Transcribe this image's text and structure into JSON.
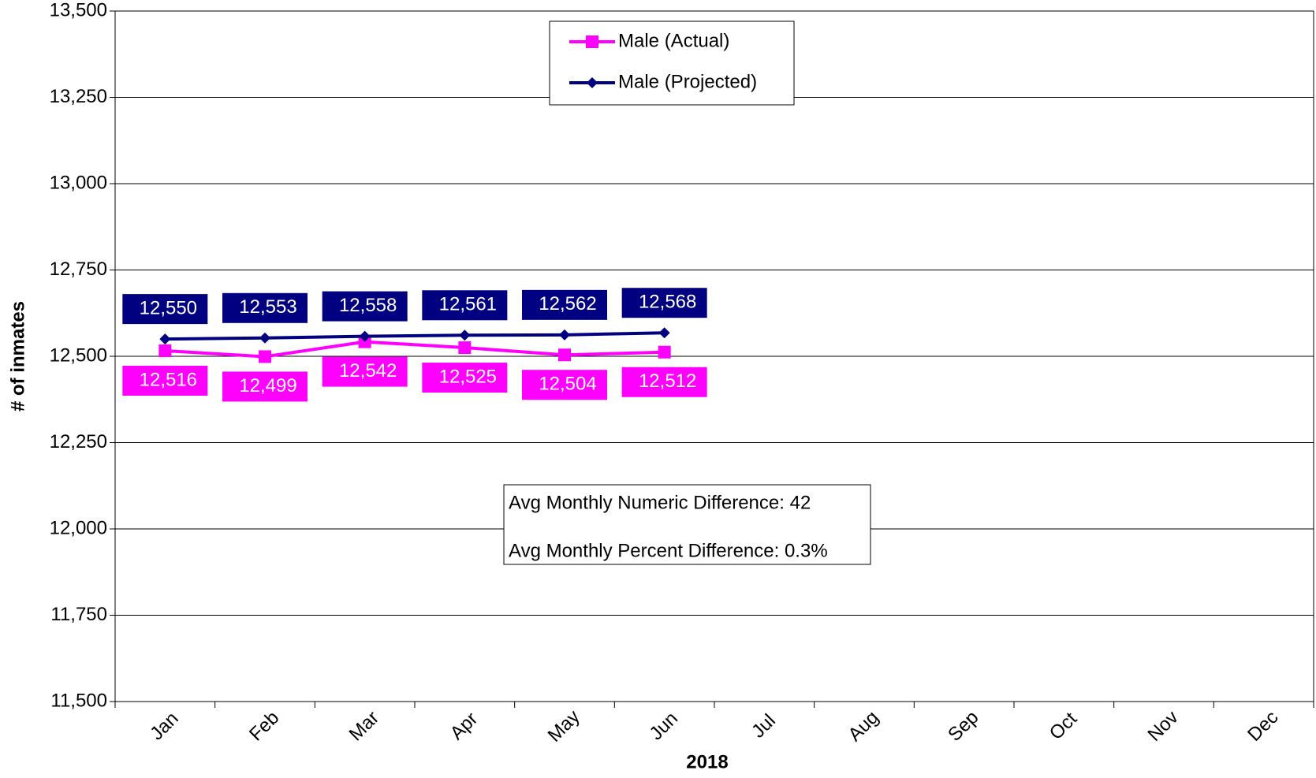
{
  "chart_data": {
    "type": "line",
    "x_label": "2018",
    "y_label": "# of inmates",
    "categories": [
      "Jan",
      "Feb",
      "Mar",
      "Apr",
      "May",
      "Jun",
      "Jul",
      "Aug",
      "Sep",
      "Oct",
      "Nov",
      "Dec"
    ],
    "series": [
      {
        "name": "Male (Actual)",
        "color": "#ff00ff",
        "marker": "square",
        "values": [
          12516,
          12499,
          12542,
          12525,
          12504,
          12512,
          null,
          null,
          null,
          null,
          null,
          null
        ],
        "value_labels": [
          "12,516",
          "12,499",
          "12,542",
          "12,525",
          "12,504",
          "12,512",
          null,
          null,
          null,
          null,
          null,
          null
        ]
      },
      {
        "name": "Male (Projected)",
        "color": "#000080",
        "marker": "diamond",
        "values": [
          12550,
          12553,
          12558,
          12561,
          12562,
          12568,
          null,
          null,
          null,
          null,
          null,
          null
        ],
        "value_labels": [
          "12,550",
          "12,553",
          "12,558",
          "12,561",
          "12,562",
          "12,568",
          null,
          null,
          null,
          null,
          null,
          null
        ]
      }
    ],
    "ylim": [
      11500,
      13500
    ],
    "yticks": [
      {
        "value": 11500,
        "label": "11,500"
      },
      {
        "value": 11750,
        "label": "11,750"
      },
      {
        "value": 12000,
        "label": "12,000"
      },
      {
        "value": 12250,
        "label": "12,250"
      },
      {
        "value": 12500,
        "label": "12,500"
      },
      {
        "value": 12750,
        "label": "12,750"
      },
      {
        "value": 13000,
        "label": "13,000"
      },
      {
        "value": 13250,
        "label": "13,250"
      },
      {
        "value": 13500,
        "label": "13,500"
      }
    ],
    "grid": true,
    "legend": "top",
    "annotations": [
      "Avg Monthly Numeric Difference: 42",
      "Avg Monthly Percent Difference: 0.3%"
    ]
  }
}
